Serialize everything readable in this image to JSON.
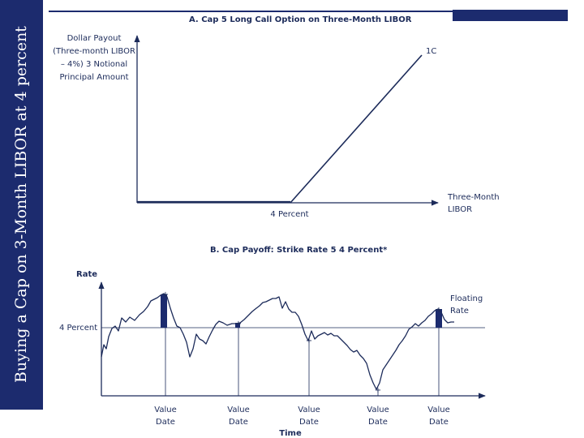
{
  "sidebar_title": "Buying a Cap on 3-Month LIBOR at 4 percent",
  "panel_a": {
    "title": "A.  Cap 5 Long Call Option on Three-Month LIBOR",
    "ylabel_lines": [
      "Dollar Payout",
      "(Three-month LIBOR",
      "– 4%) 3 Notional",
      "Principal Amount"
    ],
    "line_label": "1C",
    "xlabel_lines": [
      "Three-Month",
      "LIBOR"
    ],
    "strike_label": "4 Percent"
  },
  "panel_b": {
    "title": "B.  Cap Payoff: Strike Rate 5 4 Percent*",
    "ylabel": "Rate",
    "strike_label": "4 Percent",
    "series_label_lines": [
      "Floating",
      "Rate"
    ],
    "value_date_lines": [
      "Value",
      "Date"
    ],
    "xlabel": "Time"
  },
  "colors": {
    "navy": "#1c2b6e",
    "text": "#1c2b5a"
  }
}
